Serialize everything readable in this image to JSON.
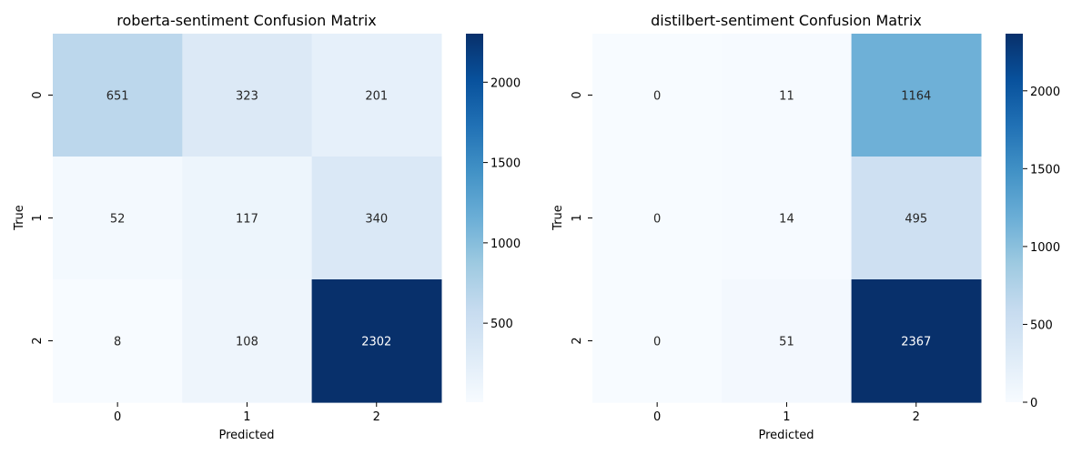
{
  "chart_data": [
    {
      "type": "heatmap",
      "title": "roberta-sentiment Confusion Matrix",
      "xlabel": "Predicted",
      "ylabel": "True",
      "x_categories": [
        "0",
        "1",
        "2"
      ],
      "y_categories": [
        "0",
        "1",
        "2"
      ],
      "values": [
        [
          651,
          323,
          201
        ],
        [
          52,
          117,
          340
        ],
        [
          8,
          108,
          2302
        ]
      ],
      "colormap": "Blues",
      "vmin": 8,
      "vmax": 2302,
      "colorbar_ticks": [
        500,
        1000,
        1500,
        2000
      ]
    },
    {
      "type": "heatmap",
      "title": "distilbert-sentiment Confusion Matrix",
      "xlabel": "Predicted",
      "ylabel": "True",
      "x_categories": [
        "0",
        "1",
        "2"
      ],
      "y_categories": [
        "0",
        "1",
        "2"
      ],
      "values": [
        [
          0,
          11,
          1164
        ],
        [
          0,
          14,
          495
        ],
        [
          0,
          51,
          2367
        ]
      ],
      "colormap": "Blues",
      "vmin": 0,
      "vmax": 2367,
      "colorbar_ticks": [
        0,
        500,
        1000,
        1500,
        2000
      ]
    }
  ]
}
